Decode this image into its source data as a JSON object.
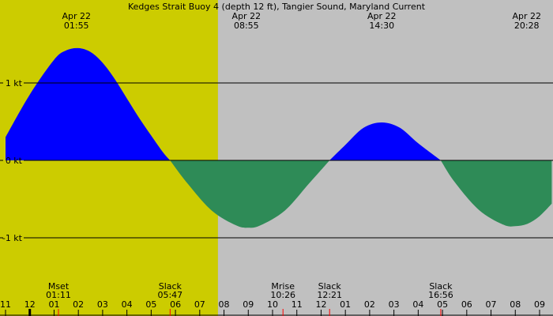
{
  "chart_data": {
    "type": "area",
    "title": "Kedges Strait Buoy 4 (depth 12 ft), Tangier Sound, Maryland Current",
    "xlabel": "",
    "ylabel": "",
    "x_unit": "hour of day",
    "ylim": [
      -1.5,
      1.5
    ],
    "xlim": [
      11.0,
      33.5
    ],
    "daylight": {
      "start": 6.25,
      "end": 19.75
    },
    "y_ticks": [
      {
        "value": 1,
        "label": "1 kt"
      },
      {
        "value": 0,
        "label": "0 kt"
      },
      {
        "value": -1,
        "label": "-1 kt"
      }
    ],
    "x_tick_labels": [
      "11",
      "12",
      "01",
      "02",
      "03",
      "04",
      "05",
      "06",
      "07",
      "08",
      "09",
      "10",
      "11",
      "12",
      "01",
      "02",
      "03",
      "04",
      "05",
      "06",
      "07",
      "08",
      "09"
    ],
    "x_tick_start_hour": 11,
    "series": [
      {
        "x": [
          11.0,
          12.0,
          13.0,
          13.5,
          14.0,
          14.5,
          15.0,
          15.5,
          16.0,
          16.5,
          17.0,
          17.5,
          17.78
        ],
        "y": [
          0.3,
          0.85,
          1.3,
          1.42,
          1.45,
          1.4,
          1.26,
          1.05,
          0.8,
          0.55,
          0.32,
          0.1,
          0.0
        ]
      },
      {
        "x": [
          17.78,
          18.5,
          19.5,
          20.5,
          21.0,
          21.5,
          22.5,
          23.5,
          24.35
        ],
        "y": [
          0.0,
          -0.3,
          -0.65,
          -0.84,
          -0.87,
          -0.84,
          -0.65,
          -0.3,
          0.0
        ]
      },
      {
        "x": [
          24.35,
          25.0,
          25.75,
          26.5,
          27.25,
          28.0,
          28.93
        ],
        "y": [
          0.0,
          0.2,
          0.42,
          0.49,
          0.42,
          0.22,
          0.0
        ]
      },
      {
        "x": [
          28.93,
          29.5,
          30.5,
          31.5,
          32.0,
          32.5,
          33.0,
          33.5
        ],
        "y": [
          0.0,
          -0.28,
          -0.64,
          -0.83,
          -0.85,
          -0.82,
          -0.72,
          -0.56
        ]
      }
    ],
    "flood_color": "#0000ff",
    "ebb_color": "#2e8b57",
    "day_color": "#cccc00",
    "night_color": "#c0c0c0",
    "top_annotations": [
      {
        "x": 13.92,
        "date": "Apr 22",
        "time": "01:55"
      },
      {
        "x": 20.92,
        "date": "Apr 22",
        "time": "08:55"
      },
      {
        "x": 26.5,
        "date": "Apr 22",
        "time": "14:30"
      },
      {
        "x": 32.47,
        "date": "Apr 22",
        "time": "20:28"
      }
    ],
    "bottom_annotations": [
      {
        "x": 13.18,
        "label": "Mset",
        "time": "01:11"
      },
      {
        "x": 17.78,
        "label": "Slack",
        "time": "05:47"
      },
      {
        "x": 22.43,
        "label": "Mrise",
        "time": "10:26"
      },
      {
        "x": 24.35,
        "label": "Slack",
        "time": "12:21"
      },
      {
        "x": 28.93,
        "label": "Slack",
        "time": "16:56"
      }
    ]
  }
}
